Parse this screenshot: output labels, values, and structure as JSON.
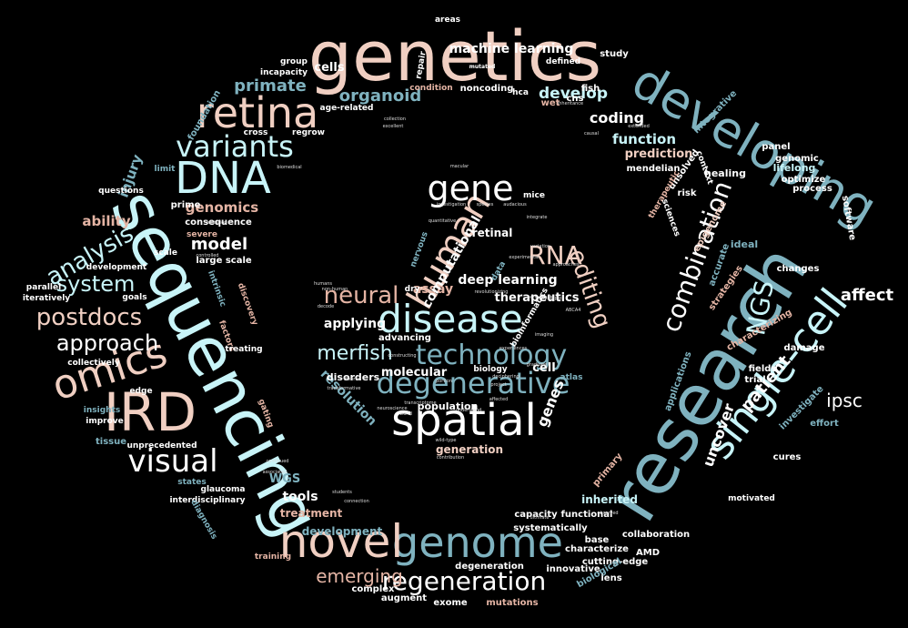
{
  "palette": {
    "background": "#000000",
    "pink": "#f0cfc2",
    "teal": "#7fb2bf",
    "cyan": "#c8f4f8",
    "white": "#ffffff",
    "salmon": "#e4b4a4",
    "gray": "#8c9ea3"
  },
  "words": [
    {
      "text": "genetics",
      "color": "pink"
    },
    {
      "text": "sequencing",
      "color": "cyan"
    },
    {
      "text": "research",
      "color": "teal"
    },
    {
      "text": "developing",
      "color": "teal"
    },
    {
      "text": "single-cell",
      "color": "cyan"
    },
    {
      "text": "DNA",
      "color": "cyan"
    },
    {
      "text": "IRD",
      "color": "pink"
    },
    {
      "text": "retina",
      "color": "pink"
    },
    {
      "text": "variants",
      "color": "cyan"
    },
    {
      "text": "omics",
      "color": "pink"
    },
    {
      "text": "genome",
      "color": "teal"
    },
    {
      "text": "novel",
      "color": "pink"
    },
    {
      "text": "spatial",
      "color": "white"
    },
    {
      "text": "disease",
      "color": "cyan"
    },
    {
      "text": "human",
      "color": "pink"
    },
    {
      "text": "degenerative",
      "color": "teal"
    },
    {
      "text": "technology",
      "color": "teal"
    },
    {
      "text": "regeneration",
      "color": "white"
    },
    {
      "text": "combination",
      "color": "white"
    },
    {
      "text": "gene",
      "color": "white"
    },
    {
      "text": "visual",
      "color": "white"
    },
    {
      "text": "NGS",
      "color": "cyan"
    },
    {
      "text": "neural",
      "color": "salmon"
    },
    {
      "text": "postdocs",
      "color": "pink"
    },
    {
      "text": "approach",
      "color": "white"
    },
    {
      "text": "analysis",
      "color": "cyan"
    },
    {
      "text": "system",
      "color": "cyan"
    },
    {
      "text": "editing",
      "color": "pink"
    },
    {
      "text": "RNA",
      "color": "pink"
    },
    {
      "text": "merfish",
      "color": "cyan"
    },
    {
      "text": "emerging",
      "color": "salmon"
    },
    {
      "text": "patient",
      "color": "white"
    },
    {
      "text": "uncover",
      "color": "white"
    },
    {
      "text": "ipsc",
      "color": "white"
    },
    {
      "text": "affect",
      "color": "white"
    },
    {
      "text": "genes",
      "color": "white"
    },
    {
      "text": "model",
      "color": "white"
    },
    {
      "text": "primate",
      "color": "teal"
    },
    {
      "text": "organoid",
      "color": "teal"
    },
    {
      "text": "develop",
      "color": "cyan"
    },
    {
      "text": "coding",
      "color": "white"
    },
    {
      "text": "function",
      "color": "cyan"
    },
    {
      "text": "machine learning",
      "color": "white"
    },
    {
      "text": "cells",
      "color": "white"
    },
    {
      "text": "genomics",
      "color": "salmon"
    },
    {
      "text": "ability",
      "color": "salmon"
    },
    {
      "text": "injury",
      "color": "teal"
    },
    {
      "text": "assay",
      "color": "salmon"
    },
    {
      "text": "computational",
      "color": "white"
    },
    {
      "text": "deep learning",
      "color": "white"
    },
    {
      "text": "therapeutics",
      "color": "white"
    },
    {
      "text": "applying",
      "color": "white"
    },
    {
      "text": "resolution",
      "color": "teal"
    },
    {
      "text": "molecular",
      "color": "white"
    },
    {
      "text": "cell",
      "color": "white"
    },
    {
      "text": "tools",
      "color": "white"
    },
    {
      "text": "treatment",
      "color": "salmon"
    },
    {
      "text": "development",
      "color": "teal"
    },
    {
      "text": "WGS",
      "color": "teal"
    },
    {
      "text": "generation",
      "color": "pink"
    },
    {
      "text": "prediction",
      "color": "pink"
    },
    {
      "text": "retinal",
      "color": "white"
    },
    {
      "text": "population",
      "color": "white"
    },
    {
      "text": "disorders",
      "color": "white"
    },
    {
      "text": "advancing",
      "color": "white"
    },
    {
      "text": "inherited",
      "color": "cyan"
    },
    {
      "text": "mutations",
      "color": "salmon"
    },
    {
      "text": "exome",
      "color": "white"
    },
    {
      "text": "augment",
      "color": "white"
    },
    {
      "text": "complex",
      "color": "white"
    },
    {
      "text": "capacity",
      "color": "white"
    },
    {
      "text": "cutting-edge",
      "color": "white"
    },
    {
      "text": "characterize",
      "color": "white"
    },
    {
      "text": "innovative",
      "color": "white"
    },
    {
      "text": "lens",
      "color": "white"
    },
    {
      "text": "degeneration",
      "color": "white"
    },
    {
      "text": "functional",
      "color": "white"
    },
    {
      "text": "base",
      "color": "white"
    },
    {
      "text": "collaboration",
      "color": "white"
    },
    {
      "text": "AMD",
      "color": "white"
    },
    {
      "text": "systematically",
      "color": "white"
    },
    {
      "text": "biological",
      "color": "teal"
    },
    {
      "text": "primary",
      "color": "salmon"
    },
    {
      "text": "motivated",
      "color": "white"
    },
    {
      "text": "cures",
      "color": "white"
    },
    {
      "text": "effort",
      "color": "teal"
    },
    {
      "text": "investigate",
      "color": "teal"
    },
    {
      "text": "trial",
      "color": "white"
    },
    {
      "text": "fields",
      "color": "white"
    },
    {
      "text": "damage",
      "color": "white"
    },
    {
      "text": "changes",
      "color": "white"
    },
    {
      "text": "ideal",
      "color": "teal"
    },
    {
      "text": "strategies",
      "color": "salmon"
    },
    {
      "text": "characterizing",
      "color": "salmon"
    },
    {
      "text": "applications",
      "color": "teal"
    },
    {
      "text": "accurate",
      "color": "teal"
    },
    {
      "text": "epigenome",
      "color": "pink"
    },
    {
      "text": "risk",
      "color": "white"
    },
    {
      "text": "optimize",
      "color": "white"
    },
    {
      "text": "process",
      "color": "white"
    },
    {
      "text": "lifelong",
      "color": "cyan"
    },
    {
      "text": "genomic",
      "color": "white"
    },
    {
      "text": "panel",
      "color": "white"
    },
    {
      "text": "software",
      "color": "white"
    },
    {
      "text": "healing",
      "color": "white"
    },
    {
      "text": "mendelian",
      "color": "white"
    },
    {
      "text": "unsolved",
      "color": "white"
    },
    {
      "text": "context",
      "color": "white"
    },
    {
      "text": "therapeutic",
      "color": "salmon"
    },
    {
      "text": "sciences",
      "color": "white"
    },
    {
      "text": "integrative",
      "color": "teal"
    },
    {
      "text": "fish",
      "color": "white"
    },
    {
      "text": "cns",
      "color": "white"
    },
    {
      "text": "wet",
      "color": "salmon"
    },
    {
      "text": "hca",
      "color": "white"
    },
    {
      "text": "noncoding",
      "color": "white"
    },
    {
      "text": "condition",
      "color": "salmon"
    },
    {
      "text": "age-related",
      "color": "white"
    },
    {
      "text": "study",
      "color": "white"
    },
    {
      "text": "defined",
      "color": "white"
    },
    {
      "text": "areas",
      "color": "white"
    },
    {
      "text": "repair",
      "color": "white"
    },
    {
      "text": "mutated",
      "color": "white"
    },
    {
      "text": "group",
      "color": "white"
    },
    {
      "text": "incapacity",
      "color": "white"
    },
    {
      "text": "foundation",
      "color": "teal"
    },
    {
      "text": "cross",
      "color": "white"
    },
    {
      "text": "regrow",
      "color": "white"
    },
    {
      "text": "limit",
      "color": "teal"
    },
    {
      "text": "questions",
      "color": "white"
    },
    {
      "text": "prime",
      "color": "white"
    },
    {
      "text": "consequence",
      "color": "white"
    },
    {
      "text": "severe",
      "color": "salmon"
    },
    {
      "text": "scale",
      "color": "white"
    },
    {
      "text": "large scale",
      "color": "white"
    },
    {
      "text": "development",
      "color": "white"
    },
    {
      "text": "parallel",
      "color": "white"
    },
    {
      "text": "goals",
      "color": "white"
    },
    {
      "text": "iteratively",
      "color": "white"
    },
    {
      "text": "intrinsic",
      "color": "teal"
    },
    {
      "text": "discovery",
      "color": "salmon"
    },
    {
      "text": "factors",
      "color": "salmon"
    },
    {
      "text": "treating",
      "color": "white"
    },
    {
      "text": "collectively",
      "color": "white"
    },
    {
      "text": "edge",
      "color": "white"
    },
    {
      "text": "insights",
      "color": "teal"
    },
    {
      "text": "improve",
      "color": "white"
    },
    {
      "text": "gating",
      "color": "salmon"
    },
    {
      "text": "tissue",
      "color": "teal"
    },
    {
      "text": "unprecedented",
      "color": "white"
    },
    {
      "text": "states",
      "color": "teal"
    },
    {
      "text": "glaucoma",
      "color": "white"
    },
    {
      "text": "interdisciplinary",
      "color": "white"
    },
    {
      "text": "diagnosis",
      "color": "teal"
    },
    {
      "text": "training",
      "color": "salmon"
    },
    {
      "text": "mice",
      "color": "white"
    },
    {
      "text": "dry",
      "color": "white"
    },
    {
      "text": "biology",
      "color": "white"
    },
    {
      "text": "bioinformatics",
      "color": "white"
    },
    {
      "text": "atlas",
      "color": "teal"
    },
    {
      "text": "nervous",
      "color": "teal"
    },
    {
      "text": "data",
      "color": "teal"
    }
  ],
  "tiny_words": [
    "macular",
    "investigation",
    "audacious",
    "species",
    "integrate",
    "quantitative",
    "variation",
    "experimental",
    "non-human",
    "humans",
    "decode",
    "revolutionizing",
    "transcriptome",
    "multiple",
    "ABCA4",
    "imaging",
    "permanent",
    "approaches",
    "experiences",
    "diverse",
    "transformative",
    "constructing",
    "deciphering",
    "neuroscience",
    "world",
    "understand",
    "wild-type",
    "contribution",
    "affected",
    "graduate",
    "project",
    "portion",
    "students",
    "connection",
    "ultimate",
    "observed",
    "inheritance",
    "causal",
    "extended",
    "biomedical",
    "mutation",
    "controlled",
    "continued",
    "associated",
    "collection",
    "excellent"
  ]
}
